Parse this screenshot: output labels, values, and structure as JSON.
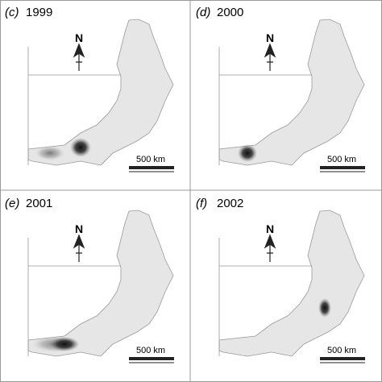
{
  "panels": [
    {
      "tag": "(c)",
      "year": "1999",
      "north": "N",
      "scale": "500 km"
    },
    {
      "tag": "(d)",
      "year": "2000",
      "north": "N",
      "scale": "500 km"
    },
    {
      "tag": "(e)",
      "year": "2001",
      "north": "N",
      "scale": "500 km"
    },
    {
      "tag": "(f)",
      "year": "2002",
      "north": "N",
      "scale": "500 km"
    }
  ]
}
